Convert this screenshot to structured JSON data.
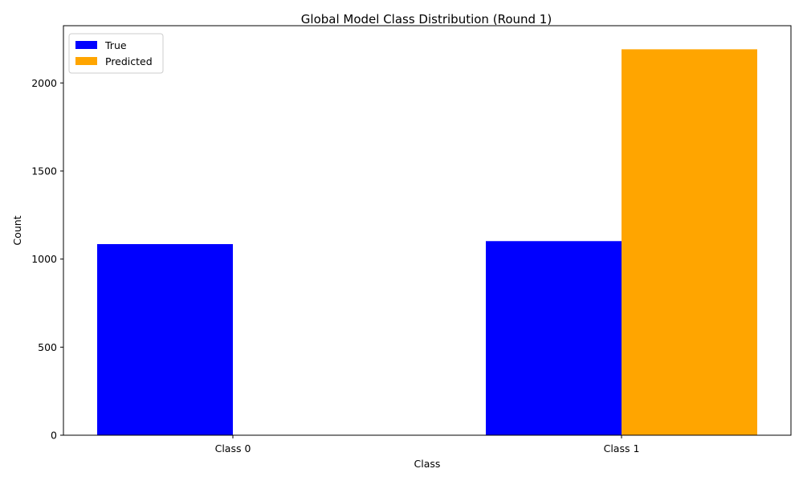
{
  "chart_data": {
    "type": "bar",
    "title": "Global Model Class Distribution (Round 1)",
    "xlabel": "Class",
    "ylabel": "Count",
    "categories": [
      "Class 0",
      "Class 1"
    ],
    "series": [
      {
        "name": "True",
        "values": [
          1085,
          1102
        ],
        "color": "#0000ff"
      },
      {
        "name": "Predicted",
        "values": [
          0,
          2191
        ],
        "color": "#ffa500"
      }
    ],
    "ylim": [
      0,
      2300
    ],
    "yticks": [
      0,
      500,
      1000,
      1500,
      2000
    ],
    "grid": false,
    "legend": "top-left"
  }
}
